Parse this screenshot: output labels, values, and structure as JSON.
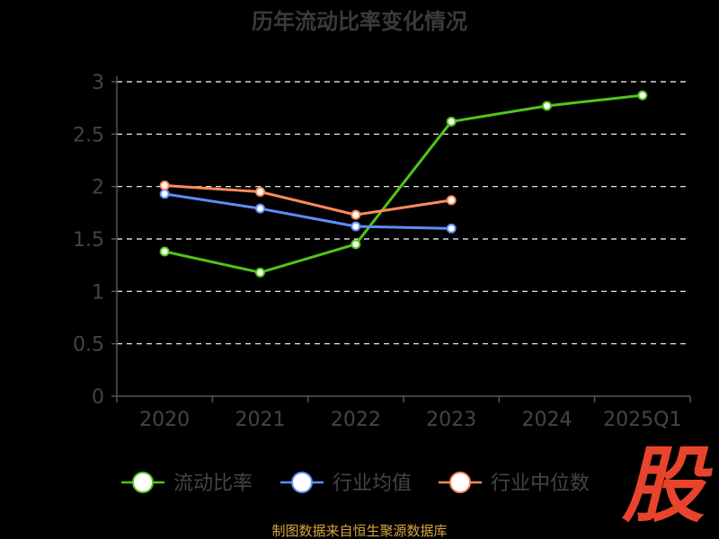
{
  "colors": {
    "background": "#000000",
    "axis": "#555555",
    "grid": "#ffffff",
    "series_1": "#52c41a",
    "series_2": "#5b8ff9",
    "series_3": "#ff8a5b",
    "watermark": "#e8432c",
    "source": "#d9a441"
  },
  "source_text": "制图数据来自恒生聚源数据库",
  "watermark_text": "股",
  "chart_data": {
    "type": "line",
    "title": "历年流动比率变化情况",
    "categories": [
      "2020",
      "2021",
      "2022",
      "2023",
      "2024",
      "2025Q1"
    ],
    "y_ticks": [
      "0",
      "0.5",
      "1",
      "1.5",
      "2",
      "2.5",
      "3"
    ],
    "ylim": [
      0,
      3
    ],
    "grid": true,
    "legend_position": "bottom",
    "series": [
      {
        "name": "流动比率",
        "values": [
          1.38,
          1.18,
          1.45,
          2.62,
          2.77,
          2.87
        ],
        "color_key": "series_1"
      },
      {
        "name": "行业均值",
        "values": [
          1.93,
          1.79,
          1.62,
          1.6,
          null,
          null
        ],
        "color_key": "series_2"
      },
      {
        "name": "行业中位数",
        "values": [
          2.01,
          1.95,
          1.73,
          1.87,
          null,
          null
        ],
        "color_key": "series_3"
      }
    ]
  }
}
